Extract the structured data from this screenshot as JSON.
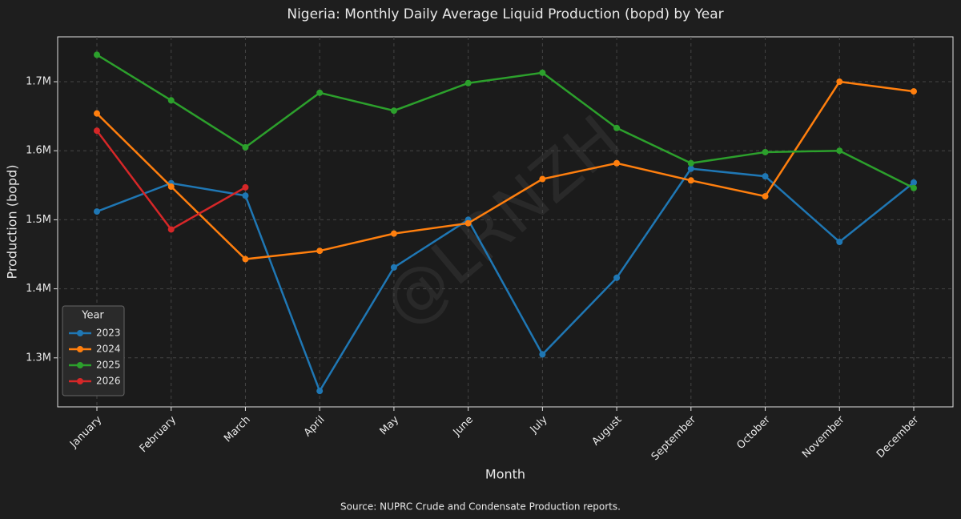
{
  "chart_data": {
    "type": "line",
    "title": "Nigeria: Monthly Daily Average Liquid Production (bopd) by Year",
    "x_label": "Month",
    "y_label": "Production (bopd)",
    "source": "Source: NUPRC Crude and Condensate Production reports.",
    "watermark": "@LRNZH",
    "legend_title": "Year",
    "legend_position": "lower left",
    "grid": true,
    "categories": [
      "January",
      "February",
      "March",
      "April",
      "May",
      "June",
      "July",
      "August",
      "September",
      "October",
      "November",
      "December"
    ],
    "series": [
      {
        "name": "2023",
        "color": "#1f77b4",
        "values": [
          1512000,
          1553000,
          1535000,
          1252000,
          1431000,
          1500000,
          1305000,
          1416000,
          1574000,
          1563000,
          1468000,
          1554000
        ]
      },
      {
        "name": "2024",
        "color": "#ff7f0e",
        "values": [
          1654000,
          1548000,
          1443000,
          1455000,
          1480000,
          1495000,
          1559000,
          1582000,
          1557000,
          1534000,
          1700000,
          1686000
        ]
      },
      {
        "name": "2025",
        "color": "#2ca02c",
        "values": [
          1739000,
          1673000,
          1605000,
          1684000,
          1658000,
          1698000,
          1713000,
          1633000,
          1582000,
          1598000,
          1600000,
          1546000
        ]
      },
      {
        "name": "2026",
        "color": "#d62728",
        "values": [
          1629000,
          1486000,
          1547000,
          null,
          null,
          null,
          null,
          null,
          null,
          null,
          null,
          null
        ]
      }
    ],
    "ylim": [
      1229000,
      1765000
    ],
    "yticks": [
      {
        "value": 1300000,
        "label": "1.3M"
      },
      {
        "value": 1400000,
        "label": "1.4M"
      },
      {
        "value": 1500000,
        "label": "1.5M"
      },
      {
        "value": 1600000,
        "label": "1.6M"
      },
      {
        "value": 1700000,
        "label": "1.7M"
      }
    ]
  }
}
